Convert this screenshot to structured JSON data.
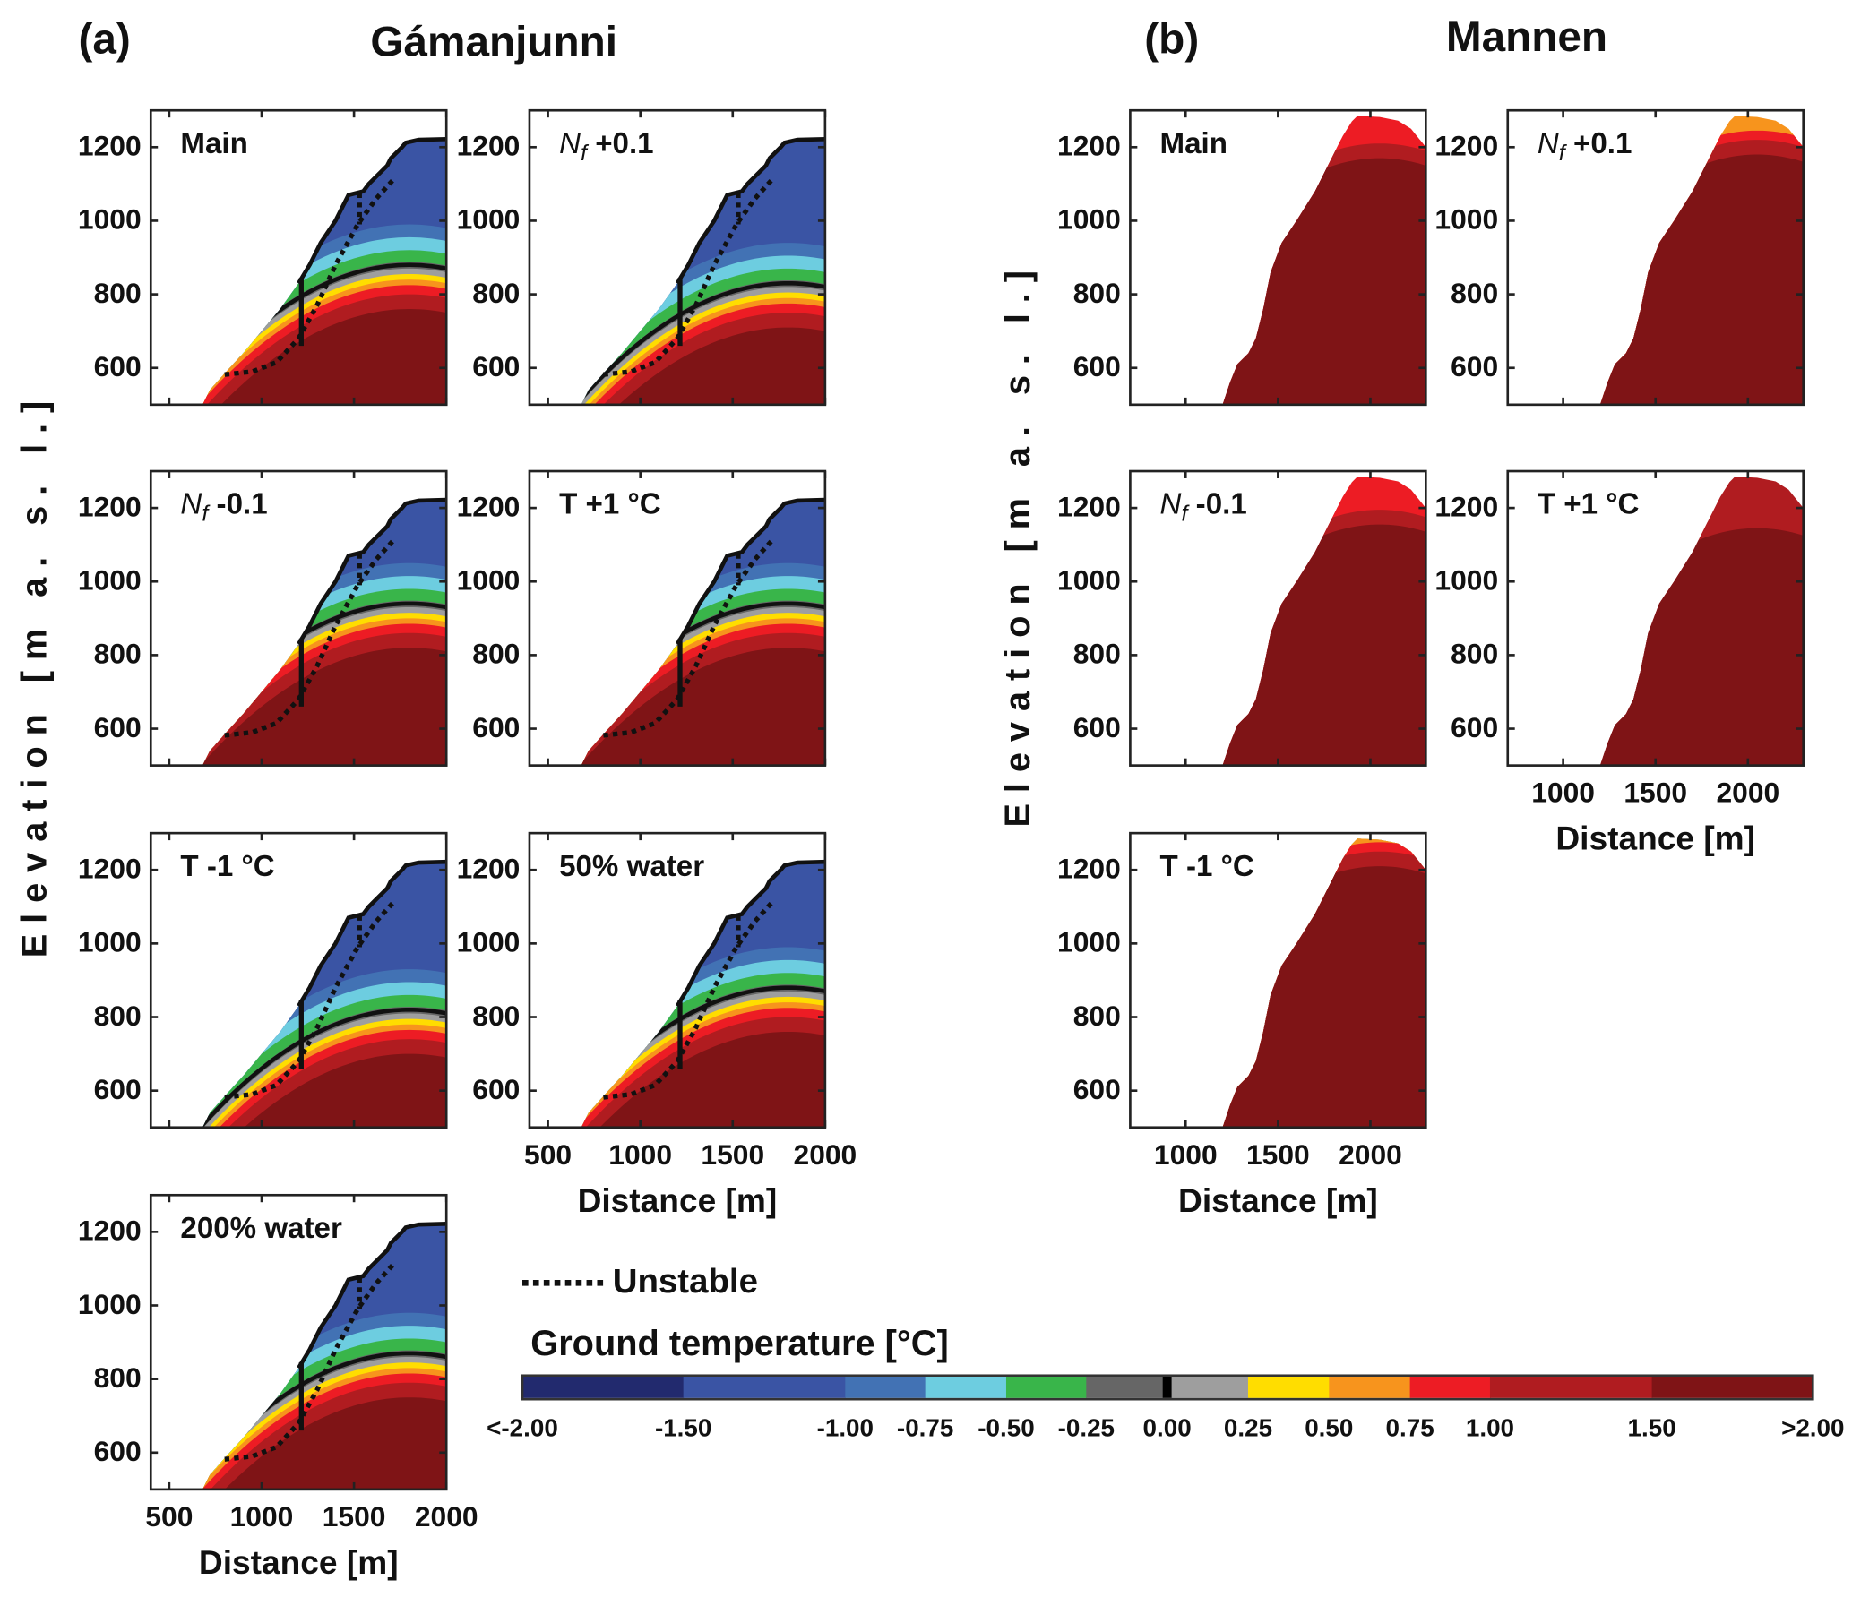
{
  "header": {
    "label_a": "(a)",
    "title_a": "Gámanjunni",
    "label_b": "(b)",
    "title_b": "Mannen"
  },
  "legend": {
    "unstable": "Unstable"
  },
  "colorbar": {
    "title": "Ground temperature [°C]",
    "labels": [
      "<-2.00",
      "-1.50",
      "-1.00",
      "-0.75",
      "-0.50",
      "-0.25",
      "0.00",
      "0.25",
      "0.50",
      "0.75",
      "1.00",
      "1.50",
      ">2.00"
    ],
    "colors": [
      "#222a6e",
      "#3a54a4",
      "#4272b4",
      "#6dcde0",
      "#39b54a",
      "#666666",
      "#000000",
      "#9e9e9e",
      "#ffdd00",
      "#f7941d",
      "#ed1c24",
      "#b01c20",
      "#7f1416"
    ]
  },
  "chart_data": [
    {
      "type": "heatmap",
      "site": "Gámanjunni",
      "xlabel": "Distance [m]",
      "ylabel": "Elevation [m a. s. l.]",
      "xlim": [
        400,
        2000
      ],
      "ylim": [
        500,
        1300
      ],
      "xticks": [
        "500",
        "1000",
        "1500",
        "2000"
      ],
      "yticks": [
        "600",
        "800",
        "1000",
        "1200"
      ],
      "panels": [
        {
          "id": "main",
          "label": "Main"
        },
        {
          "id": "nf-plus",
          "var": "N",
          "sub": "f",
          "label": " +0.1"
        },
        {
          "id": "nf-minus",
          "var": "N",
          "sub": "f",
          "label": " -0.1"
        },
        {
          "id": "t-plus",
          "label": "T +1 °C"
        },
        {
          "id": "t-minus",
          "label": "T -1 °C"
        },
        {
          "id": "water-50",
          "label": "50% water"
        },
        {
          "id": "water-200",
          "label": "200% water"
        }
      ]
    },
    {
      "type": "heatmap",
      "site": "Mannen",
      "xlabel": "Distance [m]",
      "ylabel": "Elevation [m a. s. l.]",
      "xlim": [
        700,
        2300
      ],
      "ylim": [
        500,
        1300
      ],
      "xticks": [
        "1000",
        "1500",
        "2000"
      ],
      "yticks": [
        "600",
        "800",
        "1000",
        "1200"
      ],
      "panels": [
        {
          "id": "main",
          "label": "Main"
        },
        {
          "id": "nf-plus",
          "var": "N",
          "sub": "f",
          "label": " +0.1"
        },
        {
          "id": "nf-minus",
          "var": "N",
          "sub": "f",
          "label": " -0.1"
        },
        {
          "id": "t-plus",
          "label": "T +1 °C"
        },
        {
          "id": "t-minus",
          "label": "T -1 °C"
        }
      ]
    }
  ]
}
